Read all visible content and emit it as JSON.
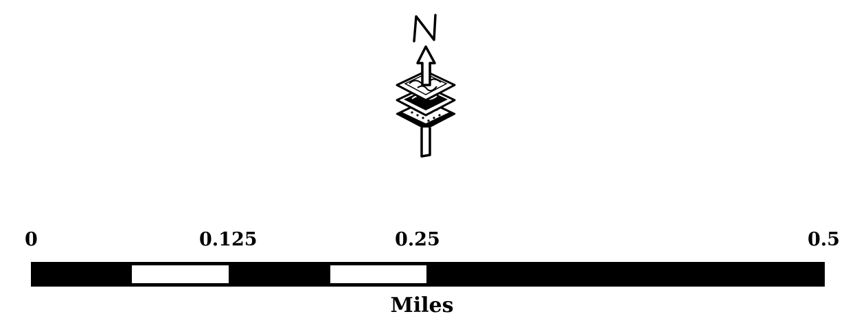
{
  "north_arrow": {
    "letter": "N",
    "icon": "layered-map-north-arrow-icon"
  },
  "scale_bar": {
    "ticks": [
      "0",
      "0.125",
      "0.25",
      "0.5"
    ],
    "units": "Miles",
    "segments": [
      {
        "from": 0,
        "to": 0.0625,
        "color": "#000000"
      },
      {
        "from": 0.0625,
        "to": 0.125,
        "color": "#ffffff"
      },
      {
        "from": 0.125,
        "to": 0.1875,
        "color": "#000000"
      },
      {
        "from": 0.1875,
        "to": 0.25,
        "color": "#ffffff"
      },
      {
        "from": 0.25,
        "to": 0.5,
        "color": "#000000"
      }
    ]
  }
}
